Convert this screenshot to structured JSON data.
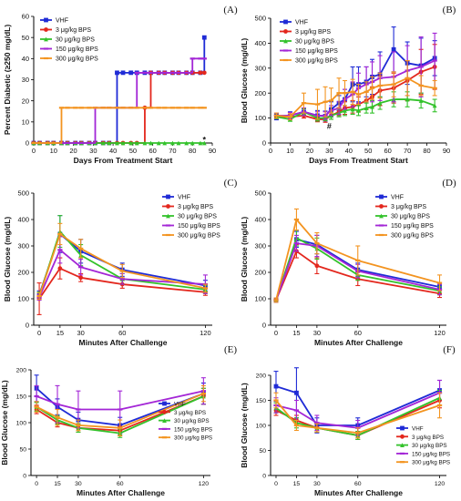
{
  "colors": {
    "VHF": "#1f2bd6",
    "3": "#e3271d",
    "30": "#33c22b",
    "150": "#a326d6",
    "300": "#f39420"
  },
  "chart_data": [
    {
      "panel_label": "(A)",
      "type": "line",
      "step": true,
      "xlabel": "Days From Treatment Start",
      "ylabel": "Percent Diabetic (≥250 mg/dL)",
      "xlim": [
        0,
        90
      ],
      "ylim": [
        0,
        60
      ],
      "xticks": [
        0,
        10,
        20,
        30,
        40,
        50,
        60,
        70,
        80,
        90
      ],
      "yticks": [
        0,
        10,
        20,
        30,
        40,
        50,
        60
      ],
      "legend_position": "top-left",
      "annotations": [
        {
          "text": "*",
          "x": 86,
          "y": 1.5
        }
      ],
      "x": [
        0,
        3,
        7,
        10,
        14,
        17,
        21,
        24,
        28,
        31,
        35,
        38,
        42,
        45,
        49,
        52,
        56,
        59,
        63,
        66,
        70,
        73,
        77,
        80,
        84,
        86
      ],
      "series": [
        {
          "key": "VHF",
          "name": "VHF",
          "values": [
            0,
            0,
            0,
            0,
            0,
            0,
            0,
            0,
            0,
            0,
            0,
            0,
            33.3,
            33.3,
            33.3,
            33.3,
            33.3,
            33.3,
            33.3,
            33.3,
            33.3,
            33.3,
            33.3,
            33.3,
            33.3,
            50
          ]
        },
        {
          "key": "3",
          "name": "3 μg/kg BPS",
          "values": [
            0,
            0,
            0,
            0,
            0,
            0,
            0,
            0,
            0,
            0,
            0,
            0,
            0,
            0,
            0,
            0,
            16.7,
            33.3,
            33.3,
            33.3,
            33.3,
            33.3,
            33.3,
            33.3,
            33.3,
            33.3
          ]
        },
        {
          "key": "30",
          "name": "30 μg/kg BPS",
          "values": [
            0,
            0,
            0,
            0,
            0,
            0,
            0,
            0,
            0,
            0,
            0,
            0,
            0,
            0,
            0,
            0,
            0,
            0,
            0,
            0,
            0,
            0,
            0,
            0,
            0,
            0
          ]
        },
        {
          "key": "150",
          "name": "150 μg/kg BPS",
          "values": [
            0,
            0,
            0,
            0,
            0,
            0,
            0,
            0,
            0,
            16.7,
            16.7,
            16.7,
            16.7,
            16.7,
            16.7,
            33.3,
            33.3,
            33.3,
            33.3,
            33.3,
            33.3,
            33.3,
            33.3,
            40,
            40,
            40
          ]
        },
        {
          "key": "300",
          "name": "300 μg/kg BPS",
          "values": [
            0,
            0,
            0,
            0,
            16.7,
            16.7,
            16.7,
            16.7,
            16.7,
            16.7,
            16.7,
            16.7,
            16.7,
            16.7,
            16.7,
            16.7,
            16.7,
            16.7,
            16.7,
            16.7,
            16.7,
            16.7,
            16.7,
            16.7,
            16.7,
            16.7
          ]
        }
      ]
    },
    {
      "panel_label": "(B)",
      "type": "line",
      "xlabel": "Days From Treatment Start",
      "ylabel": "Blood Glucose (mg/dL)",
      "xlim": [
        0,
        90
      ],
      "ylim": [
        0,
        500
      ],
      "xticks": [
        0,
        10,
        20,
        30,
        40,
        50,
        60,
        70,
        80,
        90
      ],
      "yticks": [
        0,
        100,
        200,
        300,
        400,
        500
      ],
      "legend_position": "top-left",
      "annotations": [
        {
          "text": "#",
          "x": 30,
          "y": 68
        }
      ],
      "x": [
        3,
        10,
        17,
        24,
        28,
        31,
        35,
        38,
        42,
        45,
        49,
        52,
        56,
        63,
        70,
        77,
        84
      ],
      "series": [
        {
          "key": "VHF",
          "name": "VHF",
          "values": [
            105,
            110,
            125,
            110,
            108,
            135,
            160,
            175,
            235,
            235,
            245,
            265,
            275,
            375,
            320,
            310,
            340
          ],
          "err": [
            12,
            15,
            15,
            20,
            20,
            30,
            30,
            40,
            70,
            70,
            60,
            70,
            90,
            90,
            85,
            110,
            70
          ]
        },
        {
          "key": "3",
          "name": "3 μg/kg BPS",
          "values": [
            105,
            105,
            110,
            95,
            95,
            110,
            125,
            140,
            145,
            155,
            170,
            185,
            210,
            220,
            250,
            285,
            305
          ],
          "err": [
            8,
            10,
            10,
            10,
            12,
            15,
            15,
            25,
            25,
            30,
            35,
            40,
            60,
            60,
            80,
            90,
            90
          ]
        },
        {
          "key": "30",
          "name": "30 μg/kg BPS",
          "values": [
            105,
            95,
            125,
            100,
            100,
            110,
            120,
            130,
            135,
            130,
            140,
            145,
            160,
            175,
            175,
            170,
            150
          ],
          "err": [
            8,
            8,
            12,
            12,
            10,
            15,
            15,
            20,
            20,
            20,
            20,
            25,
            25,
            30,
            30,
            30,
            25
          ]
        },
        {
          "key": "150",
          "name": "150 μg/kg BPS",
          "values": [
            110,
            110,
            125,
            110,
            110,
            130,
            140,
            175,
            195,
            220,
            235,
            245,
            260,
            265,
            290,
            305,
            330
          ],
          "err": [
            10,
            12,
            15,
            15,
            15,
            20,
            25,
            40,
            50,
            60,
            70,
            80,
            90,
            100,
            100,
            120,
            110
          ]
        },
        {
          "key": "300",
          "name": "300 μg/kg BPS",
          "values": [
            110,
            105,
            160,
            155,
            165,
            170,
            200,
            200,
            205,
            195,
            205,
            220,
            230,
            235,
            260,
            230,
            220
          ],
          "err": [
            10,
            12,
            40,
            60,
            60,
            50,
            60,
            50,
            50,
            40,
            40,
            45,
            50,
            50,
            70,
            40,
            30
          ]
        }
      ]
    },
    {
      "panel_label": "(C)",
      "type": "line",
      "xlabel": "Minutes After Challenge",
      "ylabel": "Blood Glucose (mg/dL)",
      "xlim": [
        -4,
        125
      ],
      "ylim": [
        0,
        500
      ],
      "xticks": [
        0,
        15,
        30,
        60,
        120
      ],
      "yticks": [
        0,
        100,
        200,
        300,
        400,
        500
      ],
      "legend_position": "top-right",
      "x": [
        0,
        15,
        30,
        60,
        120
      ],
      "series": [
        {
          "key": "VHF",
          "name": "VHF",
          "values": [
            115,
            345,
            280,
            210,
            150
          ],
          "err": [
            15,
            70,
            45,
            25,
            20
          ]
        },
        {
          "key": "3",
          "name": "3 μg/kg BPS",
          "values": [
            100,
            215,
            180,
            155,
            125
          ],
          "err": [
            60,
            40,
            15,
            15,
            12
          ]
        },
        {
          "key": "30",
          "name": "30 μg/kg BPS",
          "values": [
            110,
            355,
            265,
            175,
            135
          ],
          "err": [
            15,
            60,
            40,
            20,
            15
          ]
        },
        {
          "key": "150",
          "name": "150 μg/kg BPS",
          "values": [
            105,
            285,
            220,
            175,
            155
          ],
          "err": [
            10,
            50,
            30,
            20,
            35
          ]
        },
        {
          "key": "300",
          "name": "300 μg/kg BPS",
          "values": [
            110,
            345,
            290,
            205,
            140
          ],
          "err": [
            12,
            40,
            35,
            25,
            15
          ]
        }
      ]
    },
    {
      "panel_label": "(D)",
      "type": "line",
      "xlabel": "Minutes After Challenge",
      "ylabel": "Blood Glucose (mg/dL)",
      "xlim": [
        -4,
        125
      ],
      "ylim": [
        0,
        500
      ],
      "xticks": [
        0,
        15,
        30,
        60,
        120
      ],
      "yticks": [
        0,
        100,
        200,
        300,
        400,
        500
      ],
      "legend_position": "top-right",
      "x": [
        0,
        15,
        30,
        60,
        120
      ],
      "series": [
        {
          "key": "VHF",
          "name": "VHF",
          "values": [
            95,
            325,
            305,
            210,
            145
          ],
          "err": [
            8,
            30,
            35,
            25,
            15
          ]
        },
        {
          "key": "3",
          "name": "3 μg/kg BPS",
          "values": [
            95,
            280,
            225,
            175,
            120
          ],
          "err": [
            8,
            25,
            30,
            25,
            15
          ]
        },
        {
          "key": "30",
          "name": "30 μg/kg BPS",
          "values": [
            95,
            330,
            290,
            190,
            130
          ],
          "err": [
            8,
            30,
            40,
            20,
            15
          ]
        },
        {
          "key": "150",
          "name": "150 μg/kg BPS",
          "values": [
            95,
            310,
            300,
            205,
            135
          ],
          "err": [
            8,
            30,
            40,
            25,
            20
          ]
        },
        {
          "key": "300",
          "name": "300 μg/kg BPS",
          "values": [
            95,
            400,
            310,
            245,
            160
          ],
          "err": [
            8,
            40,
            40,
            55,
            30
          ]
        }
      ]
    },
    {
      "panel_label": "(E)",
      "type": "line",
      "xlabel": "Minutes After Challenge",
      "ylabel": "Blood Glucose (mg/dL)",
      "xlim": [
        -4,
        125
      ],
      "ylim": [
        0,
        200
      ],
      "xticks": [
        0,
        15,
        30,
        60,
        120
      ],
      "yticks": [
        0,
        50,
        100,
        150,
        200
      ],
      "legend_position": "bottom-right",
      "x": [
        0,
        15,
        30,
        60,
        120
      ],
      "series": [
        {
          "key": "VHF",
          "name": "VHF",
          "values": [
            165,
            130,
            105,
            95,
            155
          ],
          "err": [
            25,
            15,
            15,
            15,
            20
          ]
        },
        {
          "key": "3",
          "name": "3 μg/kg BPS",
          "values": [
            125,
            100,
            90,
            85,
            150
          ],
          "err": [
            8,
            8,
            8,
            8,
            15
          ]
        },
        {
          "key": "30",
          "name": "30 μg/kg BPS",
          "values": [
            130,
            105,
            90,
            80,
            150
          ],
          "err": [
            8,
            8,
            8,
            8,
            15
          ]
        },
        {
          "key": "150",
          "name": "150 μg/kg BPS",
          "values": [
            150,
            135,
            125,
            125,
            160
          ],
          "err": [
            20,
            35,
            35,
            35,
            25
          ]
        },
        {
          "key": "300",
          "name": "300 μg/kg BPS",
          "values": [
            130,
            110,
            95,
            90,
            155
          ],
          "err": [
            10,
            15,
            10,
            15,
            15
          ]
        }
      ]
    },
    {
      "panel_label": "(F)",
      "type": "line",
      "xlabel": "Minutes After Challenge",
      "ylabel": "Blood Glucose (mg/dL)",
      "xlim": [
        -4,
        125
      ],
      "ylim": [
        0,
        200
      ],
      "xticks": [
        0,
        15,
        30,
        60,
        120
      ],
      "yticks": [
        0,
        50,
        100,
        150,
        200
      ],
      "legend_position": "bottom-right",
      "x": [
        0,
        15,
        30,
        60,
        120
      ],
      "series": [
        {
          "key": "VHF",
          "name": "VHF",
          "values": [
            178,
            165,
            100,
            100,
            170
          ],
          "err": [
            30,
            50,
            15,
            15,
            20
          ]
        },
        {
          "key": "3",
          "name": "3 μg/kg BPS",
          "values": [
            130,
            110,
            95,
            80,
            150
          ],
          "err": [
            10,
            10,
            8,
            8,
            15
          ]
        },
        {
          "key": "30",
          "name": "30 μg/kg BPS",
          "values": [
            135,
            105,
            95,
            80,
            155
          ],
          "err": [
            10,
            10,
            8,
            8,
            15
          ]
        },
        {
          "key": "150",
          "name": "150 μg/kg BPS",
          "values": [
            140,
            130,
            105,
            95,
            165
          ],
          "err": [
            15,
            20,
            15,
            15,
            25
          ]
        },
        {
          "key": "300",
          "name": "300 μg/kg BPS",
          "values": [
            150,
            100,
            95,
            85,
            140
          ],
          "err": [
            15,
            10,
            8,
            10,
            25
          ]
        }
      ]
    }
  ]
}
